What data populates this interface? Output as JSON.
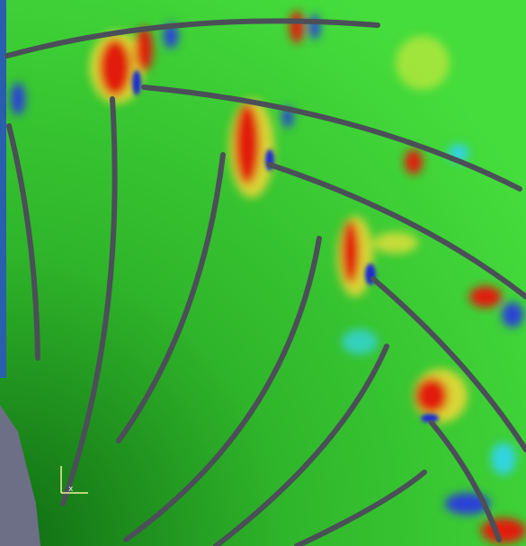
{
  "triad": {
    "horizontal_label": "x"
  }
}
